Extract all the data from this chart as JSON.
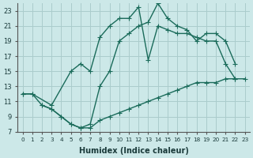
{
  "xlabel": "Humidex (Indice chaleur)",
  "background_color": "#cce8e8",
  "grid_color": "#aacccc",
  "line_color": "#1a6b5a",
  "xlim": [
    -0.5,
    23.5
  ],
  "ylim": [
    7,
    24
  ],
  "xticks": [
    0,
    1,
    2,
    3,
    4,
    5,
    6,
    7,
    8,
    9,
    10,
    11,
    12,
    13,
    14,
    15,
    16,
    17,
    18,
    19,
    20,
    21,
    22,
    23
  ],
  "yticks": [
    7,
    9,
    11,
    13,
    15,
    17,
    19,
    21,
    23
  ],
  "line1_x": [
    0,
    1,
    3,
    5,
    6,
    7,
    8,
    9,
    10,
    11,
    12,
    13,
    14,
    15,
    16,
    17,
    18,
    19,
    20,
    21,
    22
  ],
  "line1_y": [
    12,
    12,
    10.5,
    15,
    16,
    15,
    19.5,
    21,
    22,
    22,
    23.5,
    16.5,
    21,
    20.5,
    20,
    20,
    19.5,
    19,
    19,
    16,
    14
  ],
  "line2_x": [
    0,
    1,
    2,
    3,
    4,
    5,
    6,
    7,
    8,
    9,
    10,
    11,
    12,
    13,
    14,
    15,
    16,
    17,
    18,
    19,
    20,
    21,
    22
  ],
  "line2_y": [
    12,
    12,
    10.5,
    10,
    9,
    8,
    7.5,
    8,
    13,
    15,
    19,
    20,
    21,
    21.5,
    24,
    22,
    21,
    20.5,
    19,
    20,
    20,
    19,
    16
  ],
  "line3_x": [
    2,
    3,
    4,
    5,
    6,
    7,
    8,
    9,
    10,
    11,
    12,
    13,
    14,
    15,
    16,
    17,
    18,
    19,
    20,
    21,
    22,
    23
  ],
  "line3_y": [
    10.5,
    10,
    9,
    8,
    7.5,
    7.5,
    8.5,
    9,
    9.5,
    10,
    10.5,
    11,
    11.5,
    12,
    12.5,
    13,
    13.5,
    13.5,
    13.5,
    14,
    14,
    14
  ]
}
